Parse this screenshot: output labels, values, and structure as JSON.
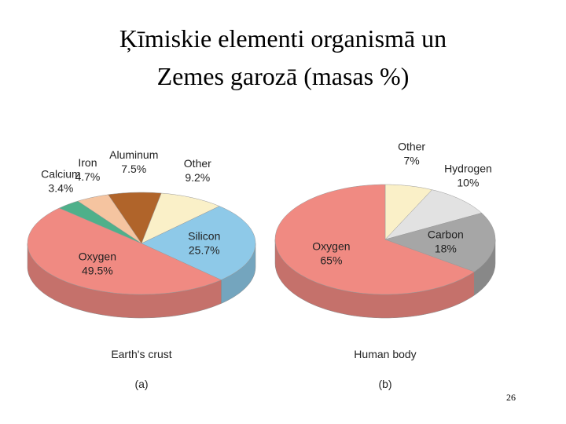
{
  "slide": {
    "title_lines": [
      "Ķīmiskie elementi organismā un",
      "Zemes garozā (masas %)"
    ],
    "page_number": "26"
  },
  "chart_data": [
    {
      "type": "pie",
      "title": "Earth's crust",
      "subtitle": "(a)",
      "categories": [
        "Other",
        "Silicon",
        "Oxygen",
        "Calcium",
        "Iron",
        "Aluminum"
      ],
      "values": [
        9.2,
        25.7,
        49.5,
        3.4,
        4.7,
        7.5
      ],
      "value_labels": [
        "9.2%",
        "25.7%",
        "49.5%",
        "3.4%",
        "4.7%",
        "7.5%"
      ],
      "colors": [
        "#faf0c8",
        "#8ec9e8",
        "#f08a82",
        "#4fb08a",
        "#f5c4a0",
        "#b0642a"
      ]
    },
    {
      "type": "pie",
      "title": "Human body",
      "subtitle": "(b)",
      "categories": [
        "Other",
        "Hydrogen",
        "Carbon",
        "Oxygen"
      ],
      "values": [
        7,
        10,
        18,
        65
      ],
      "value_labels": [
        "7%",
        "10%",
        "18%",
        "65%"
      ],
      "colors": [
        "#faf0c8",
        "#e2e2e2",
        "#a6a6a6",
        "#f08a82"
      ]
    }
  ]
}
